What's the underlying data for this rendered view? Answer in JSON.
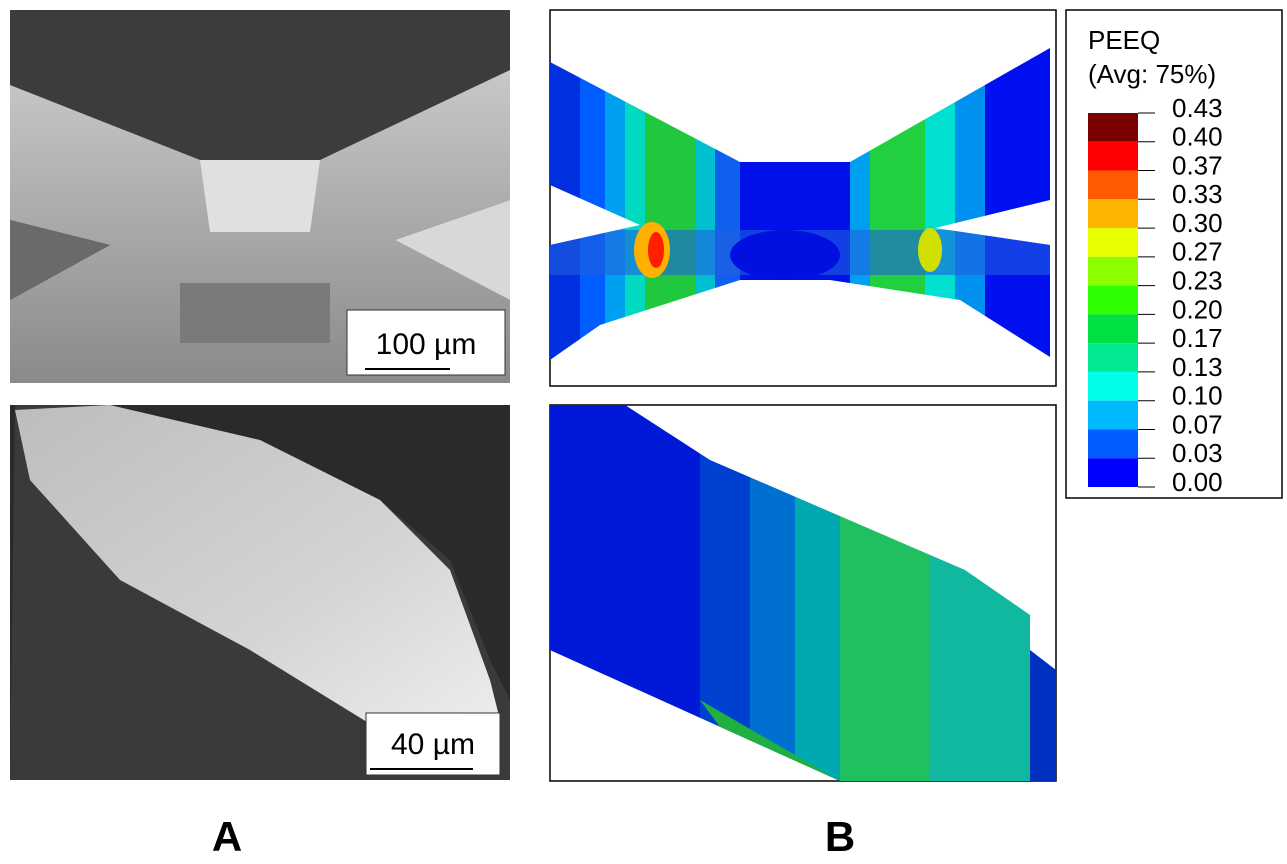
{
  "panels": [
    {
      "label": "A",
      "scale_bars": [
        "100 µm",
        "40 µm"
      ]
    },
    {
      "label": "B"
    }
  ],
  "legend": {
    "title": "PEEQ",
    "subtitle": "(Avg: 75%)",
    "labels": [
      "0.43",
      "0.40",
      "0.37",
      "0.33",
      "0.30",
      "0.27",
      "0.23",
      "0.20",
      "0.17",
      "0.13",
      "0.10",
      "0.07",
      "0.03",
      "0.00"
    ],
    "colors": [
      "#7a0000",
      "#ff0000",
      "#ff5a00",
      "#ffb400",
      "#e8ff00",
      "#8bff00",
      "#2eff00",
      "#00e040",
      "#00e890",
      "#00ffe8",
      "#00b9ff",
      "#005dff",
      "#0000ff"
    ]
  }
}
